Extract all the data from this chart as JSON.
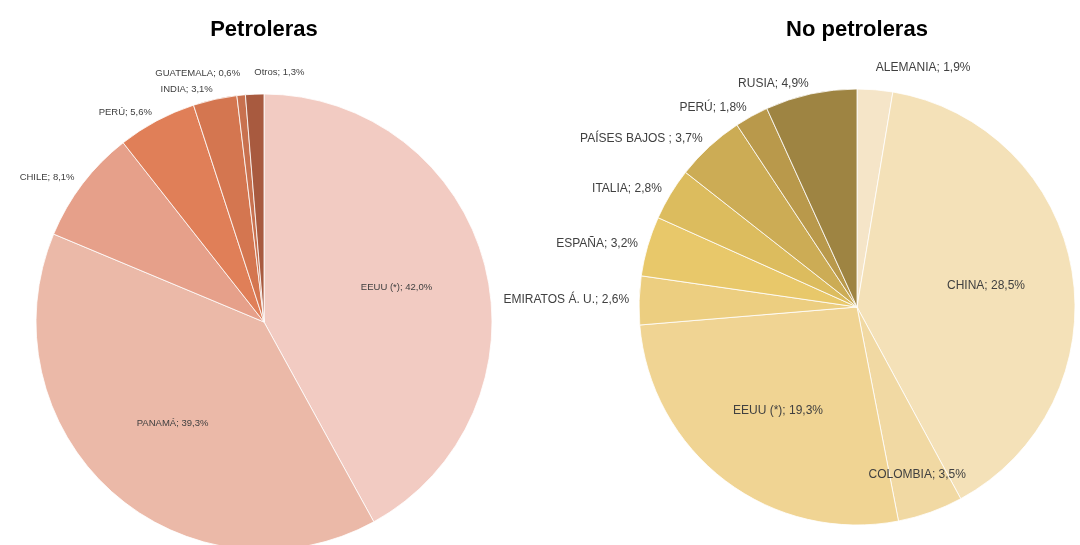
{
  "chart_data": [
    {
      "type": "pie",
      "title": "Petroleras",
      "categories": [
        "EEUU (*)",
        "PANAMÁ",
        "CHILE",
        "PERÚ",
        "INDIA",
        "GUATEMALA",
        "Otros"
      ],
      "values": [
        42.0,
        39.3,
        8.1,
        5.6,
        3.1,
        0.6,
        1.3
      ],
      "value_labels": [
        "42,0%",
        "39,3%",
        "8,1%",
        "5,6%",
        "3,1%",
        "0,6%",
        "1,3%"
      ],
      "colors": [
        "#f2cbc2",
        "#ebb9a8",
        "#e6a08a",
        "#e07f58",
        "#d47650",
        "#c8714f",
        "#a85a3f"
      ]
    },
    {
      "type": "pie",
      "title": "No petroleras",
      "categories": [
        "ALEMANIA",
        "CHINA",
        "COLOMBIA",
        "EEUU (*)",
        "EMIRATOS Á. U.",
        "ESPAÑA",
        "ITALIA",
        "PAÍSES BAJOS ",
        "PERÚ",
        "RUSIA"
      ],
      "values": [
        1.9,
        28.5,
        3.5,
        19.3,
        2.6,
        3.2,
        2.8,
        3.7,
        1.8,
        4.9
      ],
      "value_labels": [
        "1,9%",
        "28,5%",
        "3,5%",
        "19,3%",
        "2,6%",
        "3,2%",
        "2,8%",
        "3,7%",
        "1,8%",
        "4,9%"
      ],
      "colors": [
        "#f5e5c8",
        "#f4e1b8",
        "#f1d9a3",
        "#f0d493",
        "#ecce80",
        "#e8c86a",
        "#dcbc5e",
        "#ccac55",
        "#b9994b",
        "#9e8442"
      ]
    }
  ]
}
